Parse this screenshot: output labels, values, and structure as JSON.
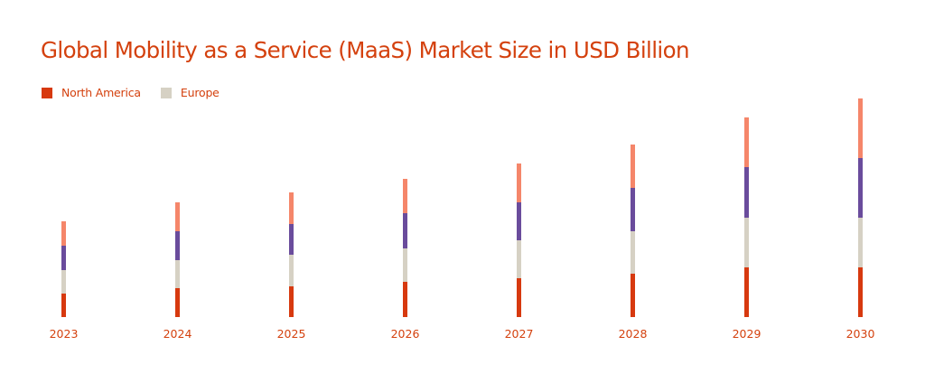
{
  "title": "Global Mobility as a Service (MaaS) Market Size in USD Billion",
  "legend": [
    {
      "label": "North America",
      "color": "#D7390F"
    },
    {
      "label": "Europe",
      "color": "#D6D1C4"
    }
  ],
  "colors": {
    "text": "#D4410E",
    "north_america": "#D7390F",
    "europe": "#D6D1C4",
    "series_3": "#6A4C9C",
    "series_4": "#F5866A"
  },
  "chart_data": {
    "type": "bar",
    "stacked": true,
    "title": "Global Mobility as a Service (MaaS) Market Size in USD Billion",
    "xlabel": "",
    "ylabel": "",
    "y_axis_visible": false,
    "grid": false,
    "legend_position": "top-left",
    "note": "No value axis shown; values are relative segment heights in pixels (baseline-measured).",
    "categories": [
      "2023",
      "2024",
      "2025",
      "2026",
      "2027",
      "2028",
      "2029",
      "2030"
    ],
    "series": [
      {
        "name": "North America",
        "color": "#D7390F",
        "values": [
          26,
          32,
          34,
          39,
          43,
          48,
          55,
          55
        ]
      },
      {
        "name": "Europe",
        "color": "#D6D1C4",
        "values": [
          26,
          31,
          35,
          37,
          42,
          47,
          55,
          55
        ]
      },
      {
        "name": "(unlabeled, purple)",
        "color": "#6A4C9C",
        "values": [
          27,
          32,
          34,
          39,
          42,
          48,
          56,
          66
        ]
      },
      {
        "name": "(unlabeled, salmon)",
        "color": "#F5866A",
        "values": [
          27,
          32,
          35,
          38,
          43,
          48,
          55,
          66
        ]
      }
    ],
    "totals": [
      106,
      127,
      138,
      153,
      170,
      191,
      221,
      242
    ]
  }
}
